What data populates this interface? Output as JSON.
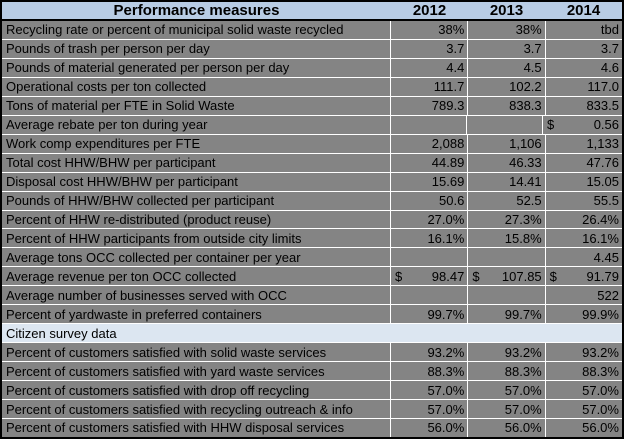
{
  "colors": {
    "border": "#000000",
    "grid": "#ffffff",
    "row_bg": "#848484",
    "header_bg": "#b8cce4",
    "section_bg": "#dce6f1",
    "text": "#000000"
  },
  "header": {
    "label": "Performance measures",
    "years": [
      "2012",
      "2013",
      "2014"
    ]
  },
  "rows": [
    {
      "label": "Recycling rate or percent of municipal solid waste recycled",
      "values": [
        "38%",
        "38%",
        "tbd"
      ]
    },
    {
      "label": "Pounds of trash per person per day",
      "values": [
        "3.7",
        "3.7",
        "3.7"
      ]
    },
    {
      "label": "Pounds of material generated per person per day",
      "values": [
        "4.4",
        "4.5",
        "4.6"
      ]
    },
    {
      "label": "Operational costs per ton collected",
      "values": [
        "111.7",
        "102.2",
        "117.0"
      ]
    },
    {
      "label": "Tons of material per FTE in Solid Waste",
      "values": [
        "789.3",
        "838.3",
        "833.5"
      ]
    },
    {
      "label": "Average rebate per ton during year",
      "values": [
        null,
        null,
        {
          "currency": "$",
          "amount": "0.56"
        }
      ]
    },
    {
      "label": "Work comp expenditures per FTE",
      "values": [
        "2,088",
        "1,106",
        "1,133"
      ]
    },
    {
      "label": "Total cost HHW/BHW per participant",
      "values": [
        "44.89",
        "46.33",
        "47.76"
      ]
    },
    {
      "label": "Disposal cost HHW/BHW per participant",
      "values": [
        "15.69",
        "14.41",
        "15.05"
      ]
    },
    {
      "label": "Pounds of HHW/BHW collected per participant",
      "values": [
        "50.6",
        "52.5",
        "55.5"
      ]
    },
    {
      "label": "Percent of HHW re-distributed (product reuse)",
      "values": [
        "27.0%",
        "27.3%",
        "26.4%"
      ]
    },
    {
      "label": "Percent of HHW participants from outside city limits",
      "values": [
        "16.1%",
        "15.8%",
        "16.1%"
      ]
    },
    {
      "label": "Average tons OCC collected per container per year",
      "values": [
        null,
        null,
        "4.45"
      ]
    },
    {
      "label": "Average revenue per ton OCC collected",
      "values": [
        {
          "currency": "$",
          "amount": "98.47"
        },
        {
          "currency": "$",
          "amount": "107.85"
        },
        {
          "currency": "$",
          "amount": "91.79"
        }
      ]
    },
    {
      "label": "Average number of businesses served with OCC",
      "values": [
        null,
        null,
        "522"
      ]
    },
    {
      "label": "Percent of yardwaste in preferred containers",
      "values": [
        "99.7%",
        "99.7%",
        "99.9%"
      ]
    },
    {
      "label": "Citizen survey data",
      "section": true
    },
    {
      "label": "Percent of customers satisfied with solid waste services",
      "values": [
        "93.2%",
        "93.2%",
        "93.2%"
      ]
    },
    {
      "label": "Percent of customers satisfied with yard waste services",
      "values": [
        "88.3%",
        "88.3%",
        "88.3%"
      ]
    },
    {
      "label": "Percent of customers satisfied with drop off recycling",
      "values": [
        "57.0%",
        "57.0%",
        "57.0%"
      ]
    },
    {
      "label": "Percent of customers satisfied with recycling outreach & info",
      "values": [
        "57.0%",
        "57.0%",
        "57.0%"
      ]
    },
    {
      "label": "Percent of customers satisfied with HHW disposal services",
      "values": [
        "56.0%",
        "56.0%",
        "56.0%"
      ]
    }
  ]
}
